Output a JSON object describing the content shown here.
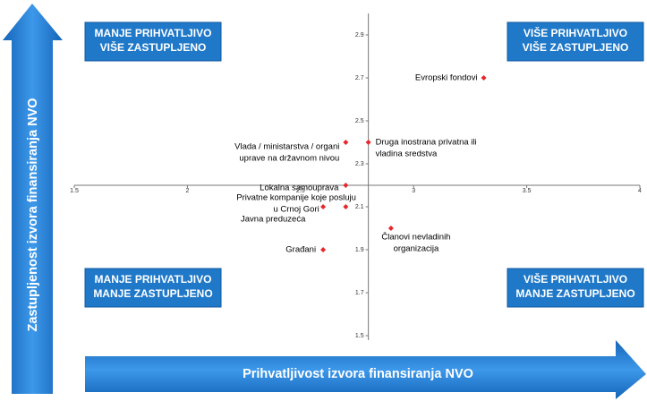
{
  "y_axis_title": "Zastupljenost izvora finansiranja NVO",
  "x_axis_title": "Prihvatljivost izvora finansiranja NVO",
  "quadrants": [
    [
      "MANJE PRIHVATLJIVO",
      "VIŠE ZASTUPLJENO"
    ],
    [
      "VIŠE PRIHVATLJIVO",
      "VIŠE ZASTUPLJENO"
    ],
    [
      "MANJE PRIHVATLJIVO",
      "MANJE ZASTUPLJENO"
    ],
    [
      "VIŠE PRIHVATLJIVO",
      "MANJE ZASTUPLJENO"
    ]
  ],
  "chart_data": {
    "type": "scatter",
    "color": "#e8262c",
    "xlim": [
      1.5,
      4
    ],
    "ylim": [
      1.5,
      3.0
    ],
    "xticks": [
      1.5,
      2,
      2.5,
      3,
      3.5,
      4
    ],
    "yticks": [
      1.5,
      1.7,
      1.9,
      2.1,
      2.3,
      2.5,
      2.7,
      2.9
    ],
    "x_axis_at": 2.2,
    "y_axis_at": 2.8,
    "x": [
      3.31,
      2.8,
      2.7,
      2.7,
      2.6,
      2.7,
      2.6,
      2.9
    ],
    "y": [
      2.7,
      2.4,
      2.4,
      2.2,
      2.1,
      2.1,
      1.9,
      2.0
    ],
    "labels": [
      [
        "Evropski fondovi"
      ],
      [
        "Druga inostrana privatna ili",
        "vladina sredstva"
      ],
      [
        "Vlada / ministarstva / organi",
        "uprave na državnom nivou"
      ],
      [
        "Lokalna samouprava"
      ],
      [
        "Privatne kompanije koje posluju",
        "u Crnoj Gori"
      ],
      [
        "Javna preduzeća"
      ],
      [
        "Građani"
      ],
      [
        "Članovi nevladinih",
        "organizacija"
      ]
    ]
  }
}
